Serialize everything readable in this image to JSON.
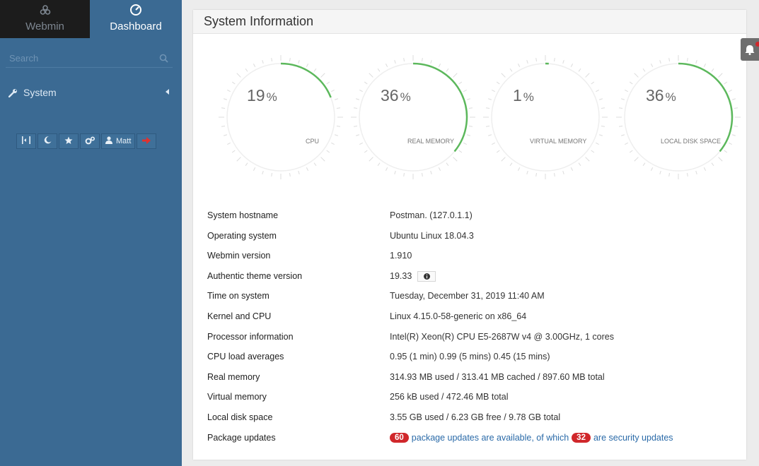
{
  "sidebar": {
    "tabs": {
      "webmin": "Webmin",
      "dashboard": "Dashboard"
    },
    "search_placeholder": "Search",
    "nav_system": "System",
    "user_label": "Matt"
  },
  "panel": {
    "title": "System Information"
  },
  "gauges": [
    {
      "value": 19,
      "unit": "%",
      "label": "CPU"
    },
    {
      "value": 36,
      "unit": "%",
      "label": "REAL MEMORY"
    },
    {
      "value": 1,
      "unit": "%",
      "label": "VIRTUAL MEMORY"
    },
    {
      "value": 36,
      "unit": "%",
      "label": "LOCAL DISK SPACE"
    }
  ],
  "info": {
    "hostname": {
      "label": "System hostname",
      "value": "Postman. (127.0.1.1)"
    },
    "os": {
      "label": "Operating system",
      "value": "Ubuntu Linux 18.04.3"
    },
    "webmin": {
      "label": "Webmin version",
      "value": "1.910"
    },
    "theme": {
      "label": "Authentic theme version",
      "value": "19.33"
    },
    "time": {
      "label": "Time on system",
      "value": "Tuesday, December 31, 2019 11:40 AM"
    },
    "kernel": {
      "label": "Kernel and CPU",
      "value": "Linux 4.15.0-58-generic on x86_64"
    },
    "processor": {
      "label": "Processor information",
      "value": "Intel(R) Xeon(R) CPU E5-2687W v4 @ 3.00GHz, 1 cores"
    },
    "load": {
      "label": "CPU load averages",
      "value": "0.95 (1 min) 0.99 (5 mins) 0.45 (15 mins)"
    },
    "realmem": {
      "label": "Real memory",
      "value": "314.93 MB used / 313.41 MB cached / 897.60 MB total"
    },
    "virtmem": {
      "label": "Virtual memory",
      "value": "256 kB used / 472.46 MB total"
    },
    "disk": {
      "label": "Local disk space",
      "value": "3.55 GB used / 6.23 GB free / 9.78 GB total"
    },
    "packages": {
      "label": "Package updates",
      "count": "60",
      "text1": "package updates are available, of which",
      "security_count": "32",
      "text2": "are security updates"
    }
  },
  "colors": {
    "sidebar": "#3b6a93",
    "gauge_arc": "#5cb85c",
    "badge": "#d0272b",
    "link": "#2a6aa8"
  }
}
